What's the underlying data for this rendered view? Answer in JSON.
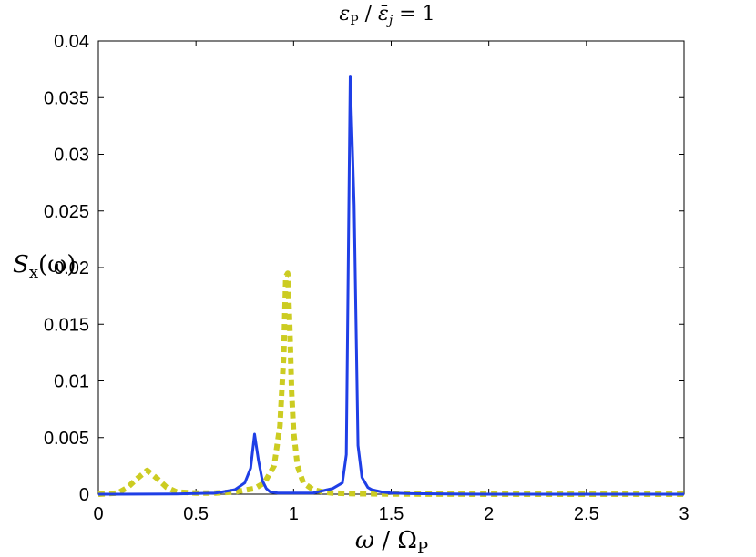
{
  "chart_data": {
    "type": "line",
    "title": "ε_P / ε̄_j = 1",
    "title_parts": {
      "eps": "ε",
      "sub_p": "P",
      "slash": " / ",
      "epsbar": "ε̄",
      "sub_j": "j",
      "rhs": " = 1"
    },
    "xlabel": "ω / Ω_P",
    "xlabel_parts": {
      "omega": "ω",
      "slash": " / ",
      "Omega": "Ω",
      "sub_p": "P"
    },
    "ylabel": "S_x(ω)",
    "ylabel_parts": {
      "S": "S",
      "sub_x": "x",
      "arg": "(ω)"
    },
    "xlim": [
      0,
      3
    ],
    "ylim": [
      0,
      0.04
    ],
    "xticks": [
      0,
      0.5,
      1,
      1.5,
      2,
      2.5,
      3
    ],
    "xtick_labels": [
      "0",
      "0.5",
      "1",
      "1.5",
      "2",
      "2.5",
      "3"
    ],
    "yticks": [
      0,
      0.005,
      0.01,
      0.015,
      0.02,
      0.025,
      0.03,
      0.035,
      0.04
    ],
    "ytick_labels": [
      "0",
      "0.005",
      "0.01",
      "0.015",
      "0.02",
      "0.025",
      "0.03",
      "0.035",
      "0.04"
    ],
    "grid": false,
    "series": [
      {
        "style": "dashed",
        "color": "#cccc22",
        "x": [
          0,
          0.1,
          0.15,
          0.2,
          0.25,
          0.3,
          0.35,
          0.4,
          0.5,
          0.6,
          0.7,
          0.8,
          0.85,
          0.9,
          0.93,
          0.95,
          0.96,
          0.97,
          0.98,
          0.99,
          1.0,
          1.02,
          1.05,
          1.1,
          1.15,
          1.2,
          1.3,
          1.5,
          2.0,
          2.5,
          3.0
        ],
        "y": [
          0,
          0.0001,
          0.0006,
          0.0014,
          0.0021,
          0.0014,
          0.0006,
          0.0002,
          0.0001,
          0.0001,
          0.0002,
          0.0005,
          0.001,
          0.0025,
          0.006,
          0.0125,
          0.0192,
          0.0195,
          0.015,
          0.009,
          0.0055,
          0.0025,
          0.001,
          0.0004,
          0.0002,
          0.0001,
          5e-05,
          2e-05,
          0,
          0,
          0
        ]
      },
      {
        "style": "solid",
        "color": "#1f3fe6",
        "x": [
          0,
          0.4,
          0.6,
          0.7,
          0.75,
          0.78,
          0.8,
          0.82,
          0.84,
          0.86,
          0.88,
          0.92,
          1.0,
          1.1,
          1.2,
          1.25,
          1.27,
          1.29,
          1.31,
          1.33,
          1.35,
          1.38,
          1.4,
          1.45,
          1.5,
          1.6,
          1.8,
          2.0,
          2.5,
          3.0
        ],
        "y": [
          0,
          2e-05,
          0.0001,
          0.0004,
          0.001,
          0.0023,
          0.0053,
          0.003,
          0.0012,
          0.0005,
          0.0002,
          0.0001,
          0.0001,
          0.0001,
          0.0005,
          0.001,
          0.0035,
          0.0369,
          0.0255,
          0.0043,
          0.0015,
          0.0006,
          0.0004,
          0.0002,
          0.0001,
          5e-05,
          2e-05,
          0,
          0,
          0
        ]
      }
    ]
  }
}
